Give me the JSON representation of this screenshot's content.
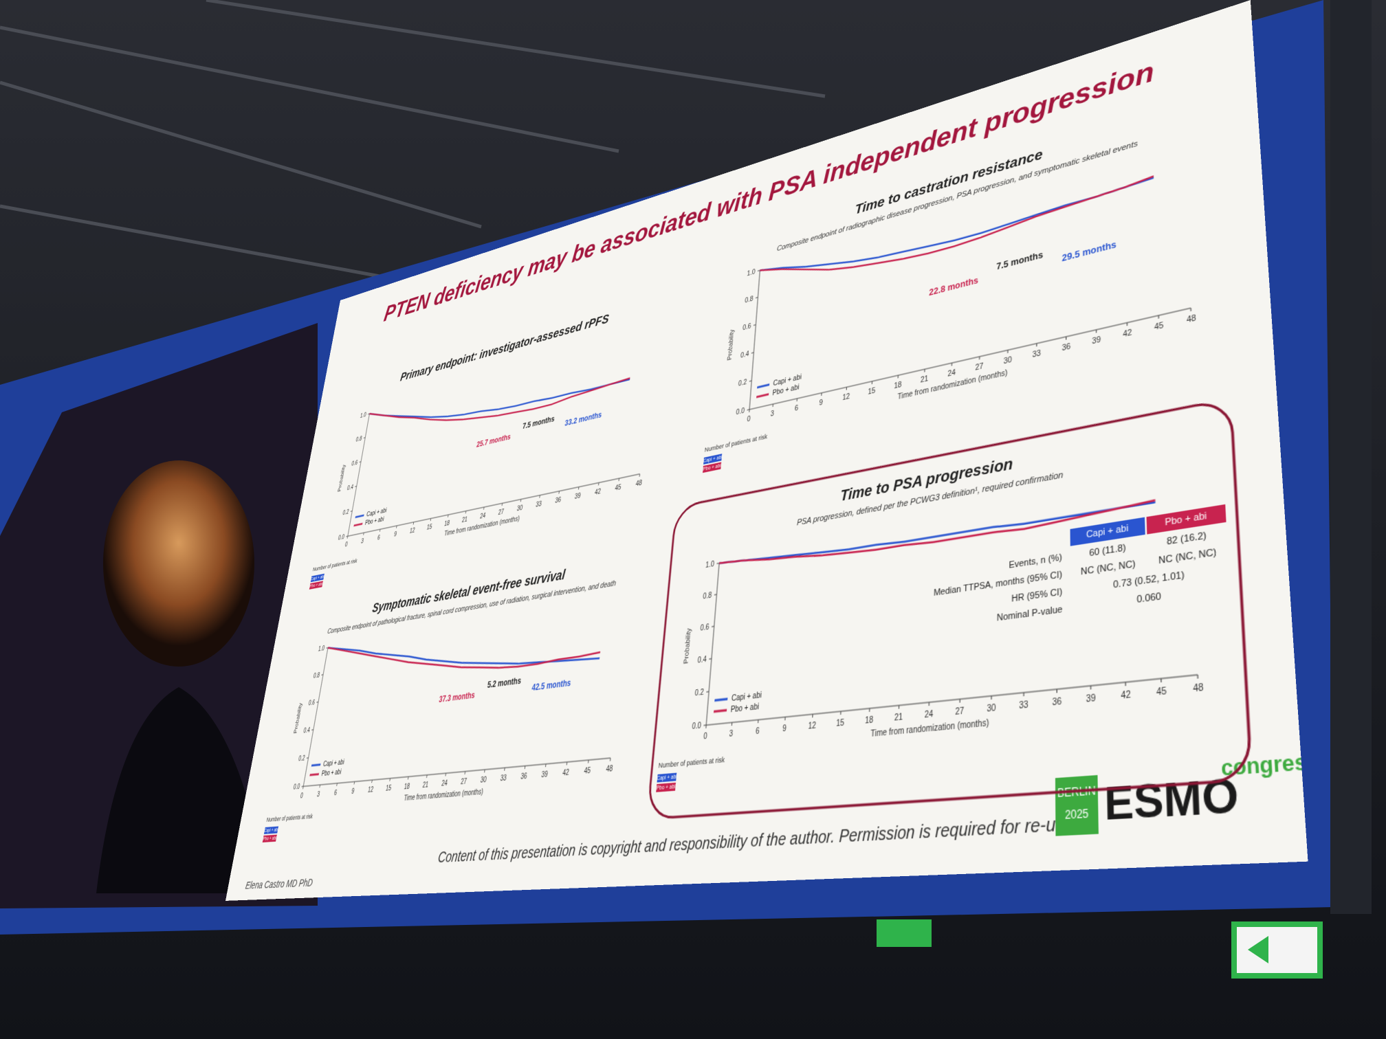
{
  "slide": {
    "title": "PTEN deficiency may be associated with PSA independent progression",
    "axis": {
      "xticks": [
        0,
        3,
        6,
        9,
        12,
        15,
        18,
        21,
        24,
        27,
        30,
        33,
        36,
        39,
        42,
        45,
        48
      ],
      "yticks": [
        {
          "value": 0,
          "label": "0.0"
        },
        {
          "value": 0.2,
          "label": "0.2"
        },
        {
          "value": 0.4,
          "label": "0.4"
        },
        {
          "value": 0.6,
          "label": "0.6"
        },
        {
          "value": 0.8,
          "label": "0.8"
        },
        {
          "value": 1,
          "label": "1.0"
        }
      ],
      "x_label": "Time from randomization (months)",
      "y_label": "Probability",
      "risk_label": "Number of patients at risk"
    },
    "panels": [
      {
        "title": "Primary endpoint: investigator-assessed rPFS",
        "annotations": [
          "25.7 months",
          "7.5 months",
          "33.2 months"
        ],
        "series": [
          {
            "name": "Capi + abi",
            "color": "#2a55d0",
            "values": [
              1,
              0.95,
              0.91,
              0.87,
              0.83,
              0.8,
              0.78,
              0.77,
              0.75,
              0.74,
              0.74,
              0.73,
              0.73,
              0.72,
              0.72,
              0.72,
              null
            ]
          },
          {
            "name": "Pbo + abi",
            "color": "#c8234f",
            "values": [
              1,
              0.95,
              0.9,
              0.86,
              0.81,
              0.77,
              0.74,
              0.72,
              0.7,
              0.69,
              0.68,
              0.68,
              0.7,
              0.71,
              0.72,
              0.73,
              null
            ]
          }
        ]
      },
      {
        "title": "Time to castration resistance",
        "subtitle": "Composite endpoint of radiographic disease progression, PSA progression, and symptomatic skeletal events",
        "annotations": [
          "22.8 months",
          "7.5 months",
          "29.5 months"
        ],
        "series": [
          {
            "name": "Capi + abi",
            "color": "#2a55d0",
            "values": [
              1,
              0.97,
              0.93,
              0.9,
              0.87,
              0.85,
              0.84,
              0.83,
              0.82,
              0.82,
              0.83,
              0.84,
              0.85,
              0.85,
              0.86,
              0.87,
              null
            ]
          },
          {
            "name": "Pbo + abi",
            "color": "#c8234f",
            "values": [
              1,
              0.96,
              0.91,
              0.86,
              0.83,
              0.81,
              0.79,
              0.78,
              0.78,
              0.79,
              0.81,
              0.83,
              0.84,
              0.85,
              0.86,
              0.88,
              null
            ]
          }
        ]
      },
      {
        "title": "Symptomatic skeletal event-free survival",
        "subtitle": "Composite endpoint of pathological fracture, spinal cord compression, use of radiation, surgical intervention, and death",
        "annotations": [
          "37.3 months",
          "5.2 months",
          "42.5 months"
        ],
        "series": [
          {
            "name": "Capi + abi",
            "color": "#2a55d0",
            "values": [
              1,
              0.97,
              0.94,
              0.9,
              0.87,
              0.84,
              0.8,
              0.77,
              0.74,
              0.72,
              0.7,
              0.68,
              0.67,
              0.66,
              0.65,
              0.64,
              null
            ]
          },
          {
            "name": "Pbo + abi",
            "color": "#c8234f",
            "values": [
              1,
              0.96,
              0.92,
              0.88,
              0.84,
              0.8,
              0.77,
              0.74,
              0.71,
              0.69,
              0.67,
              0.66,
              0.66,
              0.67,
              0.67,
              0.68,
              null
            ]
          }
        ]
      },
      {
        "title": "Time to PSA progression",
        "subtitle": "PSA progression, defined per the PCWG3 definition¹, required confirmation",
        "stats": {
          "header": [
            "Capi + abi",
            "Pbo + abi"
          ],
          "rows": [
            [
              "Events, n (%)",
              "60 (11.8)",
              "82 (16.2)"
            ],
            [
              "Median TTPSA, months (95% CI)",
              "NC (NC, NC)",
              "NC (NC, NC)"
            ],
            [
              "HR (95% CI)",
              "0.73 (0.52, 1.01)"
            ],
            [
              "Nominal P-value",
              "0.060"
            ]
          ]
        },
        "series": [
          {
            "name": "Capi + abi",
            "color": "#2a55d0",
            "values": [
              1,
              0.99,
              0.98,
              0.97,
              0.96,
              0.95,
              0.95,
              0.94,
              0.94,
              0.94,
              0.94,
              0.93,
              0.93,
              0.93,
              0.93,
              0.93,
              null
            ]
          },
          {
            "name": "Pbo + abi",
            "color": "#c8234f",
            "values": [
              1,
              0.99,
              0.97,
              0.96,
              0.94,
              0.93,
              0.92,
              0.92,
              0.91,
              0.91,
              0.91,
              0.9,
              0.91,
              0.92,
              0.93,
              0.94,
              null
            ]
          }
        ]
      }
    ],
    "footer": "Content of this presentation is copyright and responsibility of the author. Permission is required for re-use.",
    "author": "Elena Castro MD PhD",
    "logo": {
      "city": "BERLIN",
      "year": "2025",
      "brand": "ESMO",
      "word": "congress"
    }
  }
}
